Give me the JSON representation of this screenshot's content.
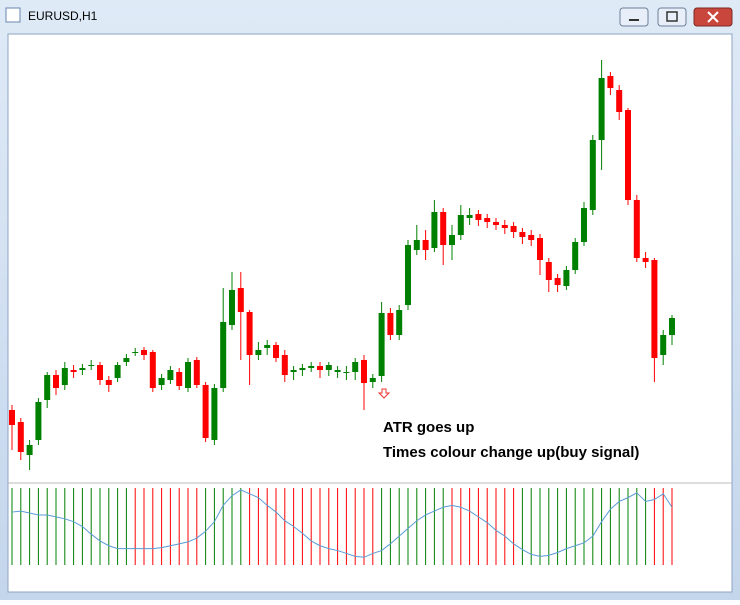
{
  "window": {
    "title": "EURUSD,H1"
  },
  "chart_data": [
    {
      "type": "candlestick",
      "annotations": [
        "ATR goes up",
        "Times colour change up(buy signal)"
      ],
      "open": [
        90,
        78,
        45,
        60,
        100,
        125,
        115,
        130,
        130,
        135,
        135,
        120,
        122,
        138,
        148,
        150,
        148,
        115,
        120,
        128,
        112,
        140,
        115,
        60,
        112,
        175,
        212,
        188,
        145,
        152,
        155,
        145,
        128,
        130,
        132,
        134,
        130,
        128,
        128,
        128,
        140,
        118,
        124,
        187,
        165,
        195,
        250,
        260,
        252,
        288,
        255,
        265,
        282,
        286,
        282,
        278,
        275,
        274,
        268,
        265,
        262,
        238,
        222,
        214,
        230,
        258,
        290,
        360,
        424,
        410,
        390,
        300,
        242,
        240,
        145,
        165
      ],
      "high": [
        95,
        82,
        60,
        102,
        128,
        130,
        138,
        135,
        136,
        140,
        138,
        124,
        138,
        146,
        152,
        153,
        150,
        126,
        134,
        132,
        142,
        143,
        118,
        116,
        212,
        228,
        228,
        190,
        158,
        160,
        158,
        150,
        134,
        136,
        138,
        138,
        138,
        134,
        134,
        142,
        145,
        126,
        198,
        192,
        195,
        260,
        275,
        270,
        300,
        292,
        275,
        295,
        292,
        290,
        286,
        282,
        280,
        278,
        272,
        270,
        266,
        242,
        226,
        234,
        262,
        298,
        365,
        440,
        428,
        415,
        392,
        305,
        248,
        242,
        170,
        185
      ],
      "low": [
        50,
        40,
        30,
        55,
        92,
        105,
        110,
        122,
        125,
        130,
        115,
        108,
        118,
        134,
        144,
        140,
        108,
        110,
        116,
        110,
        108,
        112,
        58,
        55,
        108,
        170,
        140,
        115,
        140,
        145,
        138,
        118,
        120,
        124,
        128,
        122,
        124,
        122,
        120,
        120,
        90,
        112,
        118,
        160,
        160,
        190,
        245,
        240,
        248,
        235,
        240,
        260,
        275,
        274,
        272,
        270,
        266,
        262,
        256,
        254,
        225,
        208,
        208,
        210,
        226,
        254,
        285,
        330,
        405,
        380,
        295,
        238,
        232,
        118,
        135,
        155
      ],
      "close": [
        75,
        48,
        55,
        98,
        125,
        112,
        132,
        128,
        132,
        135,
        120,
        115,
        135,
        142,
        148,
        145,
        112,
        122,
        130,
        114,
        138,
        115,
        62,
        112,
        178,
        210,
        188,
        145,
        150,
        155,
        142,
        125,
        130,
        132,
        134,
        130,
        135,
        130,
        128,
        138,
        117,
        122,
        187,
        165,
        190,
        255,
        260,
        250,
        288,
        255,
        265,
        285,
        285,
        280,
        278,
        275,
        272,
        268,
        263,
        260,
        240,
        220,
        215,
        230,
        258,
        292,
        360,
        422,
        412,
        388,
        300,
        242,
        238,
        142,
        165,
        182
      ],
      "ylim": [
        20,
        460
      ],
      "up_color": "#008000",
      "down_color": "#ff0000"
    },
    {
      "type": "line",
      "values": [
        55,
        56,
        54,
        52,
        52,
        50,
        48,
        45,
        40,
        32,
        25,
        20,
        17,
        17,
        17,
        17,
        17,
        18,
        20,
        22,
        24,
        28,
        35,
        45,
        62,
        72,
        78,
        74,
        70,
        62,
        55,
        46,
        40,
        33,
        25,
        20,
        17,
        15,
        12,
        9,
        8,
        12,
        15,
        22,
        30,
        38,
        46,
        52,
        56,
        60,
        62,
        60,
        56,
        50,
        44,
        36,
        30,
        22,
        16,
        11,
        9,
        10,
        13,
        17,
        20,
        23,
        30,
        45,
        58,
        66,
        70,
        75,
        66,
        68,
        74,
        60
      ],
      "color": "#5b9bd5",
      "ylim": [
        0,
        80
      ],
      "bar_colors": [
        "#008000",
        "#008000",
        "#008000",
        "#008000",
        "#008000",
        "#008000",
        "#008000",
        "#008000",
        "#008000",
        "#008000",
        "#008000",
        "#008000",
        "#008000",
        "#008000",
        "#ff0000",
        "#ff0000",
        "#ff0000",
        "#ff0000",
        "#ff0000",
        "#ff0000",
        "#ff0000",
        "#ff0000",
        "#008000",
        "#008000",
        "#008000",
        "#008000",
        "#008000",
        "#ff0000",
        "#ff0000",
        "#ff0000",
        "#ff0000",
        "#ff0000",
        "#ff0000",
        "#ff0000",
        "#ff0000",
        "#ff0000",
        "#ff0000",
        "#ff0000",
        "#ff0000",
        "#ff0000",
        "#ff0000",
        "#ff0000",
        "#008000",
        "#008000",
        "#008000",
        "#008000",
        "#008000",
        "#008000",
        "#008000",
        "#008000",
        "#ff0000",
        "#ff0000",
        "#ff0000",
        "#ff0000",
        "#ff0000",
        "#ff0000",
        "#ff0000",
        "#ff0000",
        "#008000",
        "#008000",
        "#008000",
        "#008000",
        "#008000",
        "#008000",
        "#008000",
        "#008000",
        "#008000",
        "#008000",
        "#008000",
        "#008000",
        "#008000",
        "#008000",
        "#008000",
        "#ff0000",
        "#ff0000",
        "#ff0000"
      ]
    }
  ]
}
